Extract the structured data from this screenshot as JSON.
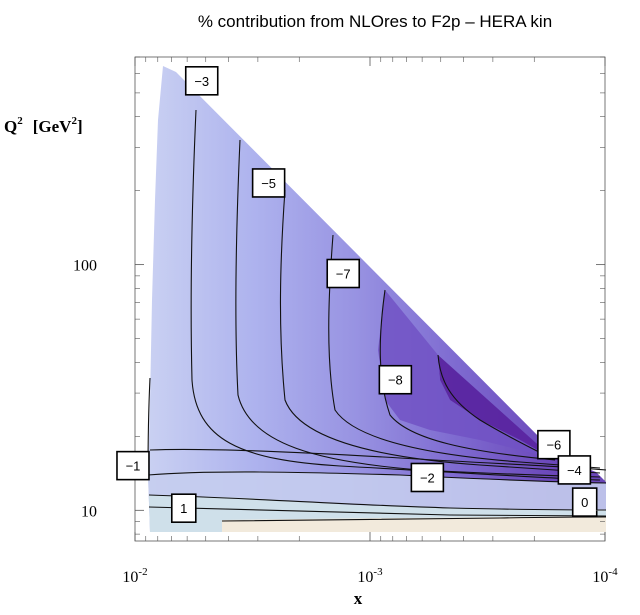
{
  "chart_data": {
    "type": "contour",
    "title": "% contribution from NLOres to F2p – HERA kin",
    "xlabel": "x",
    "ylabel": "Q",
    "ylabel_sup": "2",
    "ylabel_unit": "[GeV",
    "ylabel_unit_sup": "2",
    "ylabel_unit_close": "]",
    "x_scale": "log",
    "x_axis_reversed": true,
    "xlim": [
      0.01,
      0.0001
    ],
    "y_scale": "log",
    "ylim": [
      7.5,
      700
    ],
    "x_ticks": [
      {
        "value": 0.01,
        "base": "10",
        "exp": "-2"
      },
      {
        "value": 0.001,
        "base": "10",
        "exp": "-3"
      },
      {
        "value": 0.0001,
        "base": "10",
        "exp": "-4"
      }
    ],
    "y_ticks": [
      {
        "value": 10,
        "label": "10"
      },
      {
        "value": 100,
        "label": "100"
      }
    ],
    "contour_labels": [
      {
        "value": -3,
        "text": "−3",
        "x": 0.0052,
        "y": 560
      },
      {
        "value": -5,
        "text": "−5",
        "x": 0.0027,
        "y": 215
      },
      {
        "value": -7,
        "text": "−7",
        "x": 0.0013,
        "y": 92
      },
      {
        "value": -8,
        "text": "−8",
        "x": 0.00078,
        "y": 34
      },
      {
        "value": -6,
        "text": "−6",
        "x": 0.000165,
        "y": 18.5
      },
      {
        "value": -4,
        "text": "−4",
        "x": 0.000135,
        "y": 14.6
      },
      {
        "value": -1,
        "text": "−1",
        "x": 0.0102,
        "y": 15.2
      },
      {
        "value": -2,
        "text": "−2",
        "x": 0.00057,
        "y": 13.6
      },
      {
        "value": 0,
        "text": "0",
        "x": 0.000122,
        "y": 10.8
      },
      {
        "value": 1,
        "text": "1",
        "x": 0.0062,
        "y": 10.2
      }
    ],
    "colors": {
      "lightest": "#f2eadc",
      "light_blue": "#cfe0ea",
      "level_minus1": "#c1ccec",
      "level_minus3": "#b6bdef",
      "level_minus5": "#9a98e4",
      "level_minus7": "#7c66cc",
      "darkest": "#5a25a0"
    },
    "grid": false,
    "legend": "none"
  }
}
